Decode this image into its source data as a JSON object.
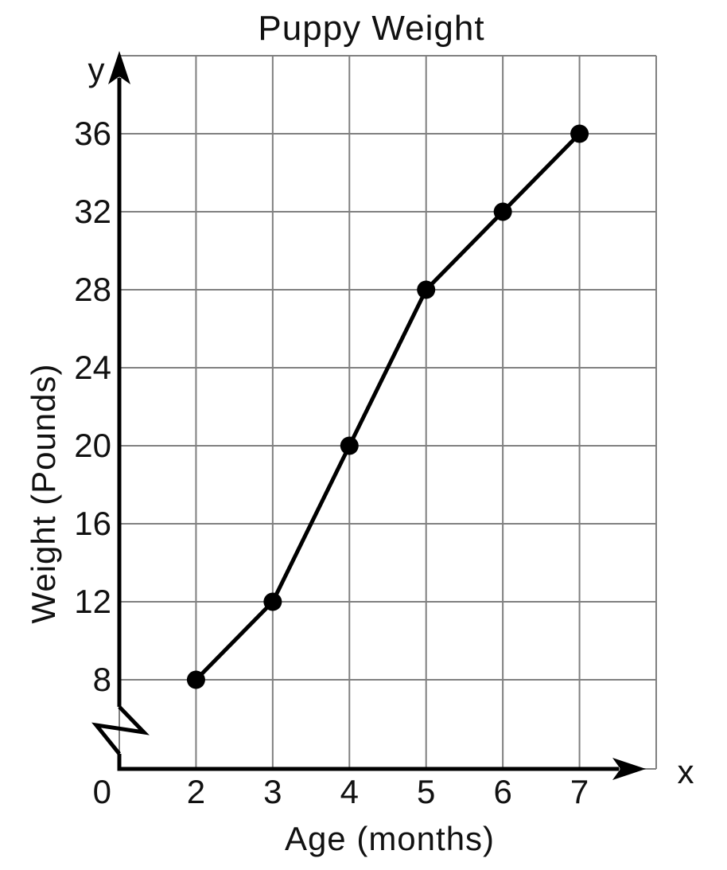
{
  "title": "Puppy Weight",
  "axis_letters": {
    "x": "x",
    "y": "y"
  },
  "chart_data": {
    "type": "line",
    "title": "Puppy Weight",
    "xlabel": "Age (months)",
    "ylabel": "Weight (Pounds)",
    "x": [
      2,
      3,
      4,
      5,
      6,
      7
    ],
    "values": [
      8,
      12,
      20,
      28,
      32,
      36
    ],
    "series": [
      {
        "name": "Puppy Weight",
        "x": [
          2,
          3,
          4,
          5,
          6,
          7
        ],
        "values": [
          8,
          12,
          20,
          28,
          32,
          36
        ]
      }
    ],
    "x_tick_labels": [
      "2",
      "3",
      "4",
      "5",
      "6",
      "7"
    ],
    "y_tick_labels": [
      "36",
      "32",
      "28",
      "24",
      "20",
      "16",
      "12",
      "8"
    ],
    "y_tick_values": [
      36,
      32,
      28,
      24,
      20,
      16,
      12,
      8
    ],
    "origin_label": "0",
    "y_axis_break": true,
    "xlim": [
      0,
      8
    ],
    "ylim": [
      0,
      40
    ],
    "grid": true,
    "legend": "none",
    "colors": {
      "line": "#000000",
      "points": "#000000",
      "axes": "#000000",
      "grid": "#808080",
      "text": "#111111",
      "background": "#ffffff"
    }
  }
}
